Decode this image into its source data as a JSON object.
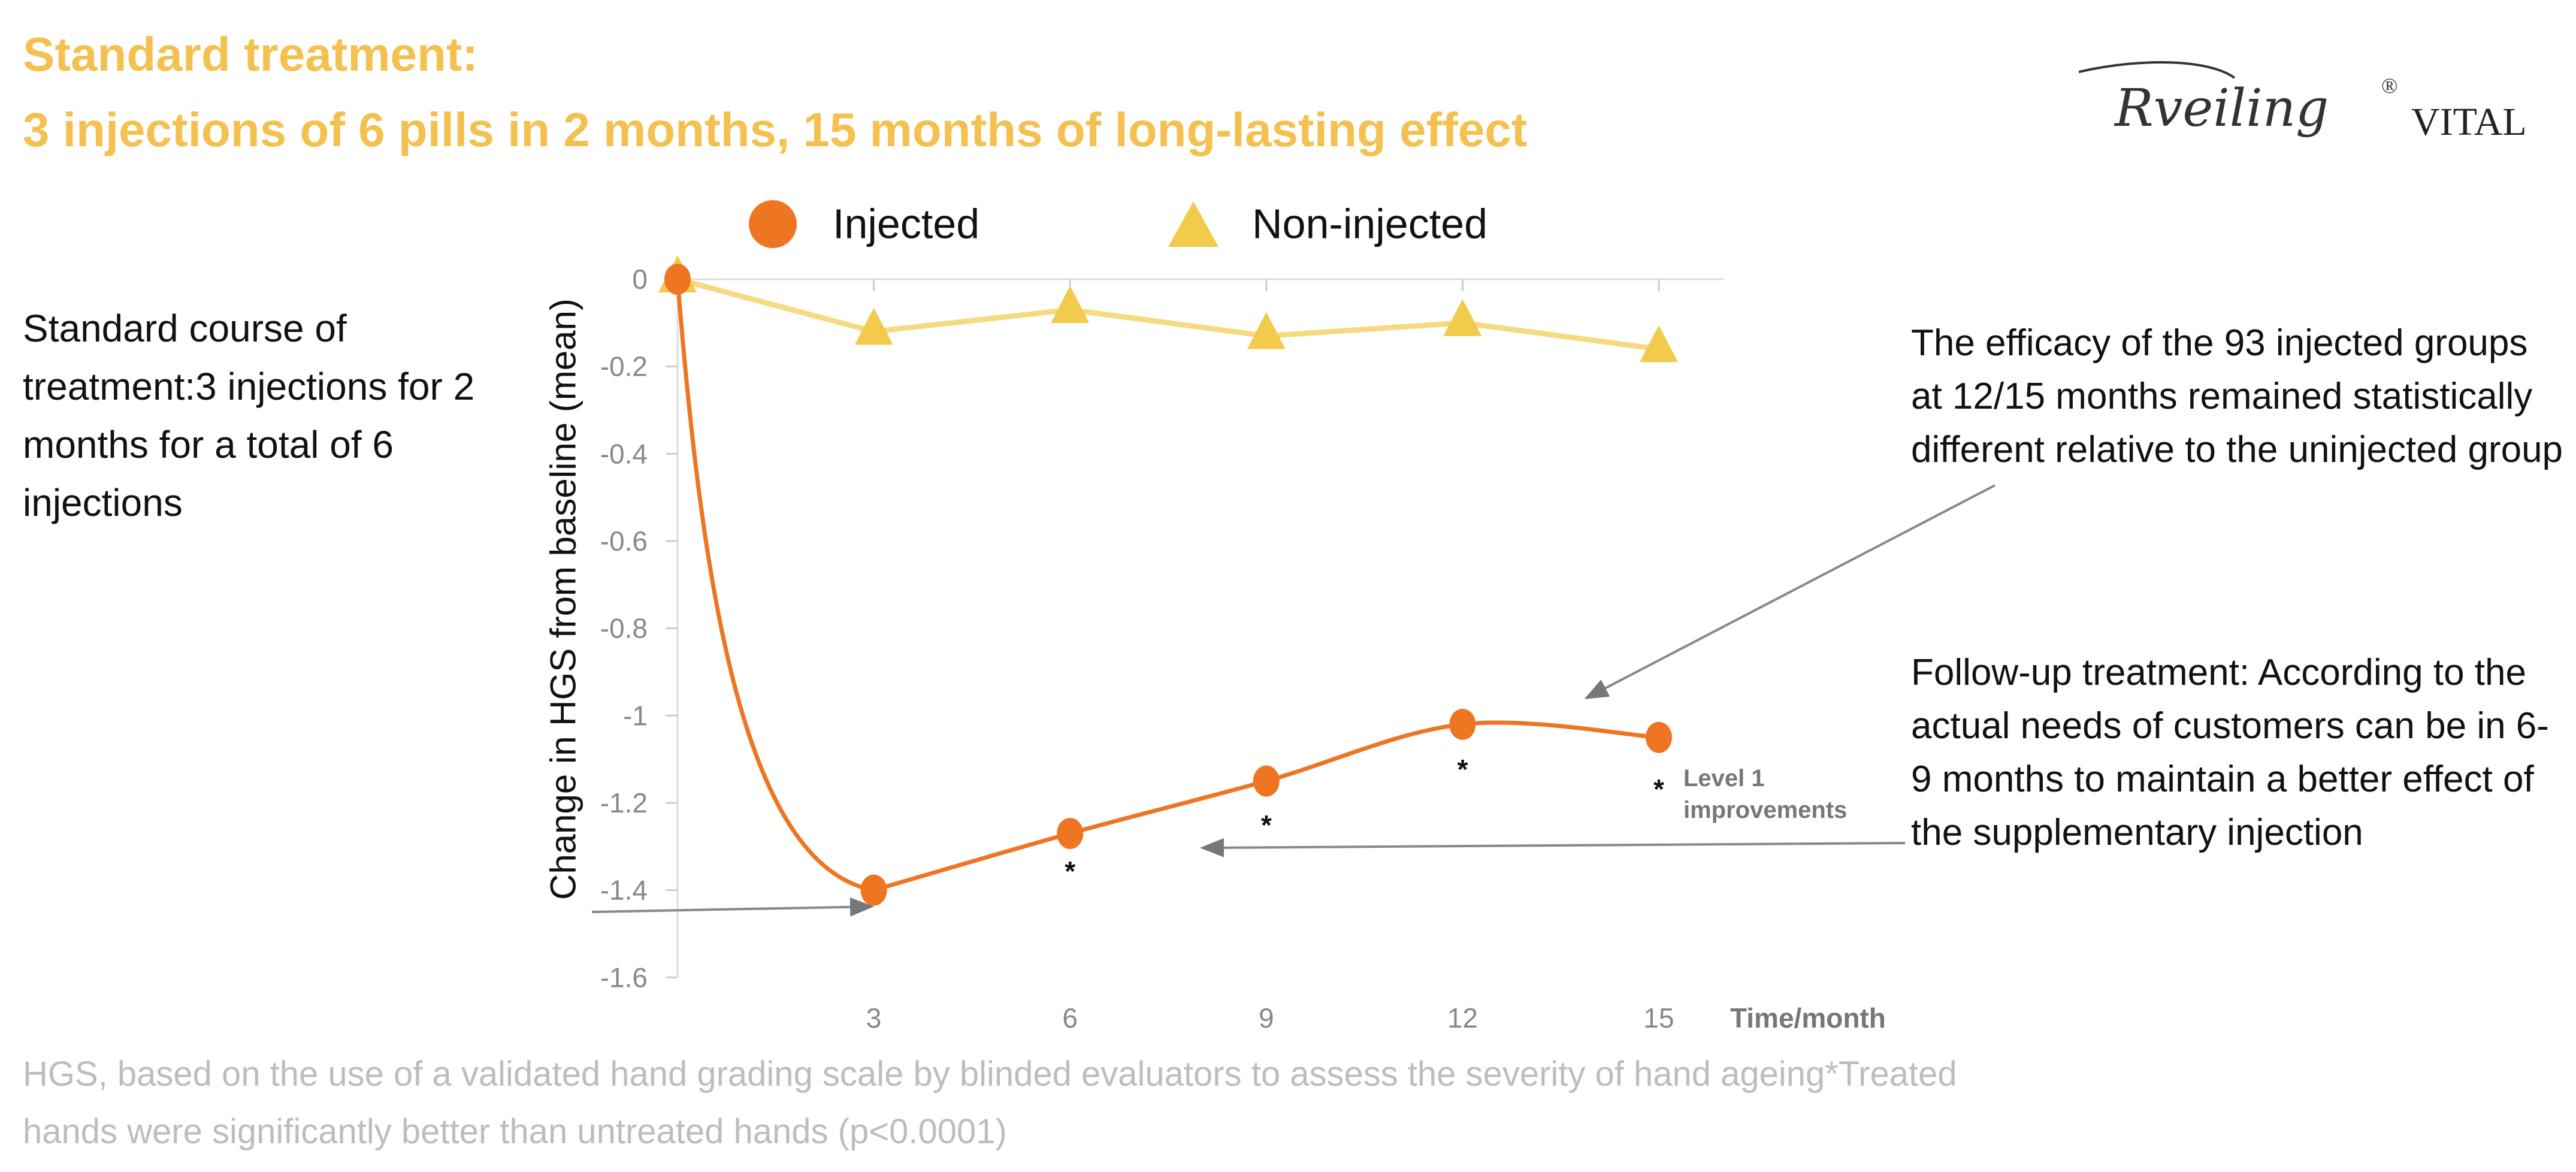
{
  "header": {
    "title_line1": "Standard treatment:",
    "title_line2": "3 injections of 6 pills in 2 months, 15 months of long-lasting effect",
    "logo_text": "Rveiling® VITAL"
  },
  "left_note": "Standard course of treatment:3 injections for 2 months for a total of 6 injections",
  "right_note_1": "The efficacy of the 93 injected groups at 12/15 months remained statistically different relative to the uninjected group",
  "right_note_2": "Follow-up treatment: According to the actual needs of customers can be in 6-9 months to maintain a better effect of the supplementary injection",
  "footer": {
    "line1": "HGS, based on the use of a validated hand grading scale by blinded evaluators to assess the severity of hand ageing*Treated",
    "line2": "hands were significantly better than untreated hands (p<0.0001)"
  },
  "colors": {
    "title": "#F4C150",
    "injected": "#EE7522",
    "non_injected": "#F3CB4C",
    "footer": "#BDBDBD"
  },
  "chart_data": {
    "type": "line",
    "xlabel": "Time/month",
    "ylabel": "Change in HGS from baseline (mean)",
    "x": [
      0,
      3,
      6,
      9,
      12,
      15
    ],
    "x_tick_labels": [
      "3",
      "6",
      "9",
      "12",
      "15"
    ],
    "y_ticks": [
      "0",
      "-0.2",
      "-0.4",
      "-0.6",
      "-0.8",
      "-1",
      "-1.2",
      "-1.4",
      "-1.6"
    ],
    "ylim": [
      -1.6,
      0
    ],
    "xlim": [
      0,
      16
    ],
    "legend_placement": "top",
    "grid": false,
    "series": [
      {
        "name": "Injected",
        "marker": "circle",
        "color": "#EE7522",
        "values": [
          0,
          -1.4,
          -1.27,
          -1.15,
          -1.02,
          -1.05
        ]
      },
      {
        "name": "Non-injected",
        "marker": "triangle",
        "color": "#F3CB4C",
        "values": [
          0,
          -0.12,
          -0.07,
          -0.13,
          -0.1,
          -0.16
        ]
      }
    ],
    "significance_markers": {
      "symbol": "*",
      "x": [
        6,
        9,
        12,
        15
      ]
    },
    "annotation": "Level 1 improvements"
  }
}
